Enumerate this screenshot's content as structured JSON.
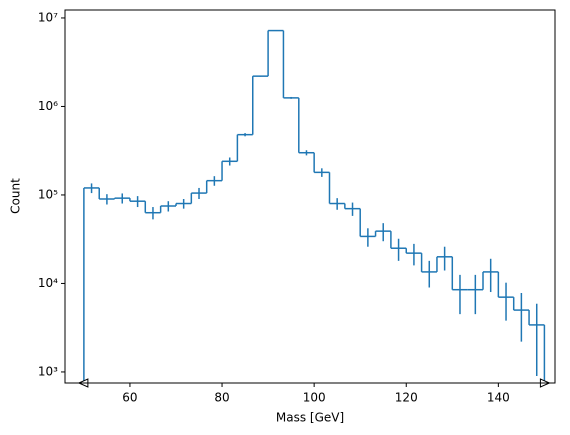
{
  "chart_data": {
    "type": "histogram",
    "xlabel": "Mass [GeV]",
    "ylabel": "Count",
    "bins": [
      50,
      53.333,
      56.667,
      60,
      63.333,
      66.667,
      70,
      73.333,
      76.667,
      80,
      83.333,
      86.667,
      90,
      93.333,
      96.667,
      100,
      103.333,
      106.667,
      110,
      113.333,
      116.667,
      120,
      123.333,
      126.667,
      130,
      133.333,
      136.667,
      140,
      143.333,
      146.667,
      150
    ],
    "values": [
      120000,
      90000,
      92000,
      85000,
      63000,
      75000,
      80000,
      105000,
      145000,
      240000,
      480000,
      2200000,
      7200000,
      1250000,
      300000,
      180000,
      80000,
      70000,
      34000,
      39000,
      25000,
      22000,
      13500,
      20000,
      8500,
      8500,
      13500,
      7000,
      5000,
      3400
    ],
    "errors": [
      15000,
      12000,
      12000,
      12000,
      10000,
      10000,
      10000,
      15000,
      18000,
      25000,
      20000,
      30000,
      50000,
      30000,
      20000,
      20000,
      12000,
      12000,
      8000,
      9000,
      7000,
      6000,
      4500,
      6000,
      4000,
      4000,
      5500,
      3200,
      2800,
      2500
    ],
    "color": "#1f77b4",
    "xlim": [
      45.9,
      152.3
    ],
    "xticks": [
      60,
      80,
      100,
      120,
      140
    ],
    "ylim": [
      750,
      12300000
    ],
    "log_y": true,
    "yticks": [
      {
        "value": 1000,
        "label": "10³"
      },
      {
        "value": 10000,
        "label": "10⁴"
      },
      {
        "value": 100000,
        "label": "10⁵"
      },
      {
        "value": 1000000,
        "label": "10⁶"
      },
      {
        "value": 10000000,
        "label": "10⁷"
      }
    ],
    "grid": false
  }
}
